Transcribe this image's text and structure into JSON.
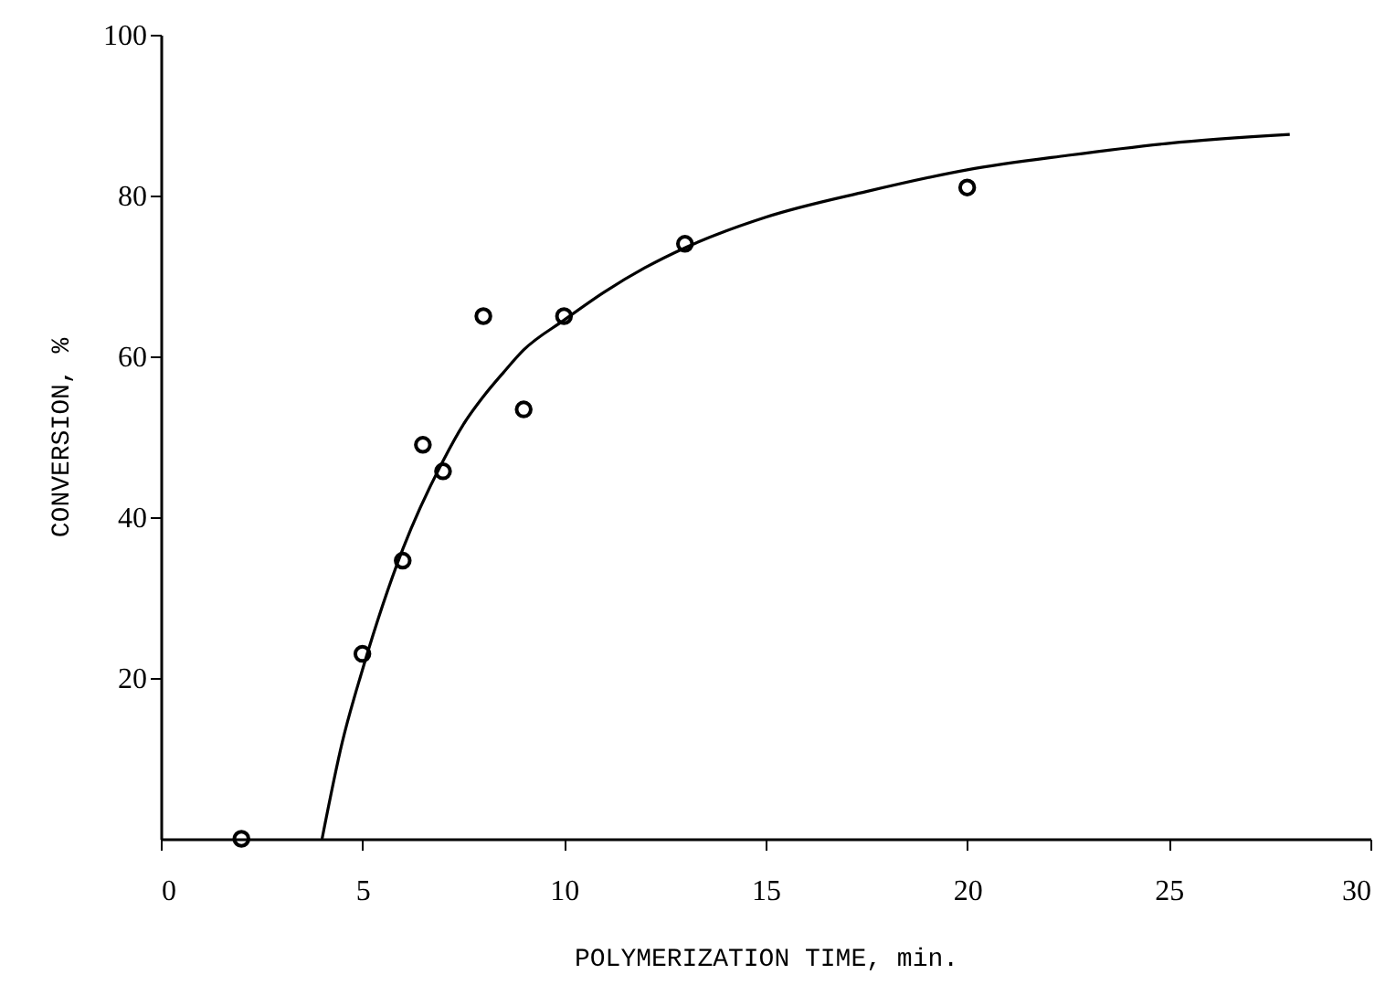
{
  "chart_data": {
    "type": "scatter",
    "xlabel": "POLYMERIZATION TIME, min.",
    "ylabel": "CONVERSION, %",
    "xlim": [
      0,
      30
    ],
    "ylim": [
      0,
      100
    ],
    "xticks": [
      0,
      5,
      10,
      15,
      20,
      25,
      30
    ],
    "yticks": [
      20,
      40,
      60,
      80,
      100
    ],
    "grid": false,
    "series": [
      {
        "color": "#000000",
        "marker": "circle",
        "x": [
          2,
          5,
          6,
          6.5,
          7,
          8,
          9,
          10,
          13,
          20
        ],
        "values": [
          0,
          23,
          34.6,
          49,
          45.7,
          65,
          53.4,
          65,
          74,
          81
        ]
      },
      {
        "type": "line",
        "marker": "none",
        "color": "#000000",
        "x": [
          4,
          4.5,
          5,
          6,
          7,
          7.5,
          8,
          8.5,
          9,
          10,
          11,
          12,
          13,
          15,
          17.5,
          20,
          22.5,
          25,
          28
        ],
        "values": [
          0,
          12,
          21,
          36,
          47,
          51.5,
          55,
          58,
          60.8,
          64.5,
          68,
          71,
          73.5,
          77.3,
          80.5,
          83.2,
          85,
          86.5,
          87.6
        ]
      }
    ]
  }
}
